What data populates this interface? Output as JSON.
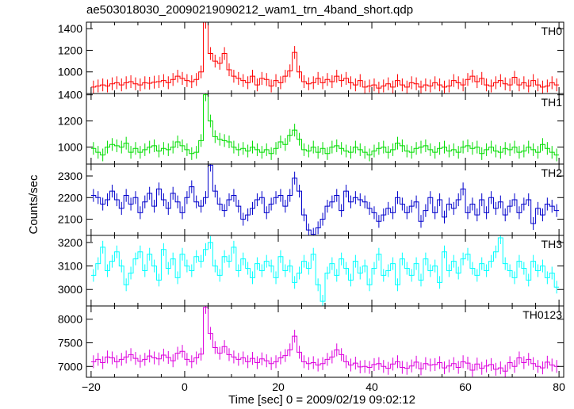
{
  "chart_data": {
    "type": "line",
    "title": "ae503018030_20090219090212_wam1_trn_4band_short.qdp",
    "xlabel": "Time [sec] 0 = 2009/02/19 09:02:12",
    "ylabel": "Counts/sec",
    "xlim": [
      -21,
      81
    ],
    "xticks": [
      -20,
      0,
      20,
      40,
      60,
      80
    ],
    "x_start": -20,
    "bin_width": 1,
    "style": "step histogram with vertical error bars",
    "panels": [
      {
        "name": "TH0",
        "color": "#ff0000",
        "ylim": [
          800,
          1460
        ],
        "yticks": [
          1000,
          1200,
          1400
        ],
        "values": [
          860,
          870,
          880,
          870,
          890,
          900,
          880,
          900,
          910,
          890,
          880,
          900,
          895,
          905,
          910,
          920,
          900,
          930,
          960,
          940,
          920,
          910,
          930,
          1000,
          1460,
          1170,
          1100,
          1080,
          1170,
          1020,
          960,
          940,
          920,
          900,
          960,
          880,
          940,
          930,
          870,
          920,
          900,
          960,
          1010,
          1180,
          1000,
          910,
          890,
          900,
          940,
          900,
          930,
          910,
          960,
          920,
          940,
          900,
          880,
          920,
          860,
          870,
          880,
          850,
          870,
          890,
          860,
          920,
          880,
          860,
          900,
          890,
          860,
          880,
          870,
          900,
          880,
          860,
          870,
          920,
          900,
          880,
          930,
          960,
          910,
          940,
          880,
          870,
          900,
          920,
          890,
          880,
          950,
          880,
          900,
          870,
          920,
          880,
          860,
          870,
          900,
          880
        ]
      },
      {
        "name": "TH1",
        "color": "#00dd00",
        "ylim": [
          870,
          1410
        ],
        "yticks": [
          1000,
          1200,
          1400
        ],
        "values": [
          990,
          960,
          940,
          1000,
          1020,
          1010,
          1000,
          1030,
          960,
          990,
          960,
          980,
          1000,
          1010,
          970,
          990,
          980,
          1000,
          1040,
          1010,
          980,
          950,
          960,
          1050,
          1400,
          1200,
          1080,
          1060,
          1050,
          1040,
          1000,
          980,
          990,
          970,
          1000,
          980,
          960,
          980,
          950,
          990,
          1040,
          1020,
          1090,
          1130,
          1060,
          980,
          970,
          1000,
          960,
          990,
          950,
          1000,
          1010,
          990,
          970,
          960,
          1000,
          980,
          960,
          940,
          970,
          990,
          1000,
          960,
          980,
          1030,
          1010,
          970,
          960,
          990,
          1000,
          1010,
          980,
          960,
          990,
          1000,
          970,
          980,
          960,
          1000,
          1010,
          990,
          1000,
          950,
          980,
          1000,
          970,
          960,
          990,
          980,
          1000,
          960,
          970,
          1000,
          980,
          960,
          1020,
          990,
          960,
          940
        ]
      },
      {
        "name": "TH2",
        "color": "#0000cc",
        "ylim": [
          2025,
          2355
        ],
        "yticks": [
          2100,
          2200,
          2300
        ],
        "values": [
          2210,
          2200,
          2170,
          2190,
          2230,
          2190,
          2150,
          2210,
          2170,
          2200,
          2130,
          2180,
          2220,
          2160,
          2240,
          2190,
          2150,
          2220,
          2180,
          2130,
          2200,
          2250,
          2180,
          2160,
          2200,
          2350,
          2230,
          2170,
          2140,
          2190,
          2210,
          2160,
          2100,
          2120,
          2150,
          2190,
          2200,
          2130,
          2170,
          2200,
          2210,
          2160,
          2210,
          2290,
          2230,
          2120,
          2050,
          2030,
          2060,
          2100,
          2160,
          2180,
          2210,
          2140,
          2230,
          2180,
          2200,
          2190,
          2180,
          2150,
          2130,
          2090,
          2120,
          2150,
          2130,
          2200,
          2170,
          2130,
          2160,
          2180,
          2090,
          2140,
          2200,
          2130,
          2190,
          2110,
          2170,
          2150,
          2190,
          2240,
          2130,
          2170,
          2120,
          2190,
          2130,
          2200,
          2150,
          2180,
          2120,
          2160,
          2190,
          2130,
          2170,
          2190,
          2080,
          2150,
          2120,
          2170,
          2160,
          2140
        ]
      },
      {
        "name": "TH3",
        "color": "#00ffff",
        "ylim": [
          2930,
          3230
        ],
        "yticks": [
          3000,
          3100,
          3200
        ],
        "values": [
          3060,
          3110,
          3180,
          3080,
          3120,
          3160,
          3100,
          3020,
          3070,
          3130,
          3160,
          3080,
          3150,
          3100,
          3040,
          3170,
          3090,
          3130,
          3050,
          3150,
          3100,
          3080,
          3140,
          3120,
          3170,
          3200,
          3100,
          3060,
          3140,
          3120,
          3180,
          3080,
          3130,
          3090,
          3050,
          3110,
          3080,
          3120,
          3100,
          3050,
          3140,
          3080,
          3100,
          3030,
          3070,
          3120,
          3090,
          3150,
          3020,
          2950,
          3070,
          3110,
          3060,
          3130,
          3090,
          3040,
          3120,
          3070,
          3100,
          3020,
          3090,
          3150,
          3060,
          3080,
          3110,
          3020,
          3130,
          3090,
          3060,
          3110,
          3040,
          3130,
          3080,
          3100,
          3030,
          3160,
          3080,
          3120,
          3070,
          3130,
          3150,
          3090,
          3060,
          3110,
          3080,
          3120,
          3160,
          3220,
          3110,
          3080,
          3050,
          3120,
          3090,
          3040,
          3120,
          3080,
          3100,
          3050,
          3070,
          3010
        ]
      },
      {
        "name": "TH0123",
        "color": "#dd00dd",
        "ylim": [
          6770,
          8280
        ],
        "yticks": [
          7000,
          7500,
          8000
        ],
        "values": [
          7100,
          7150,
          7080,
          7200,
          7180,
          7100,
          7150,
          7200,
          7250,
          7170,
          7110,
          7150,
          7220,
          7180,
          7160,
          7240,
          7190,
          7120,
          7280,
          7320,
          7150,
          7100,
          7180,
          7260,
          8250,
          7700,
          7400,
          7280,
          7420,
          7250,
          7200,
          7150,
          7180,
          7100,
          7170,
          7080,
          7160,
          7120,
          7060,
          7100,
          7180,
          7230,
          7350,
          7640,
          7300,
          7100,
          7060,
          7080,
          7030,
          7060,
          7150,
          7200,
          7350,
          7250,
          7100,
          7030,
          7070,
          6990,
          7000,
          6980,
          7040,
          7060,
          7000,
          6960,
          7050,
          7100,
          6980,
          6960,
          7010,
          7090,
          6950,
          7060,
          7030,
          7040,
          7080,
          6970,
          7010,
          7060,
          6980,
          7100,
          7070,
          6920,
          7050,
          6960,
          7010,
          7040,
          6940,
          6970,
          6900,
          7080,
          7000,
          7180,
          7080,
          7150,
          7060,
          7000,
          6970,
          7090,
          7030,
          7000
        ]
      }
    ]
  }
}
